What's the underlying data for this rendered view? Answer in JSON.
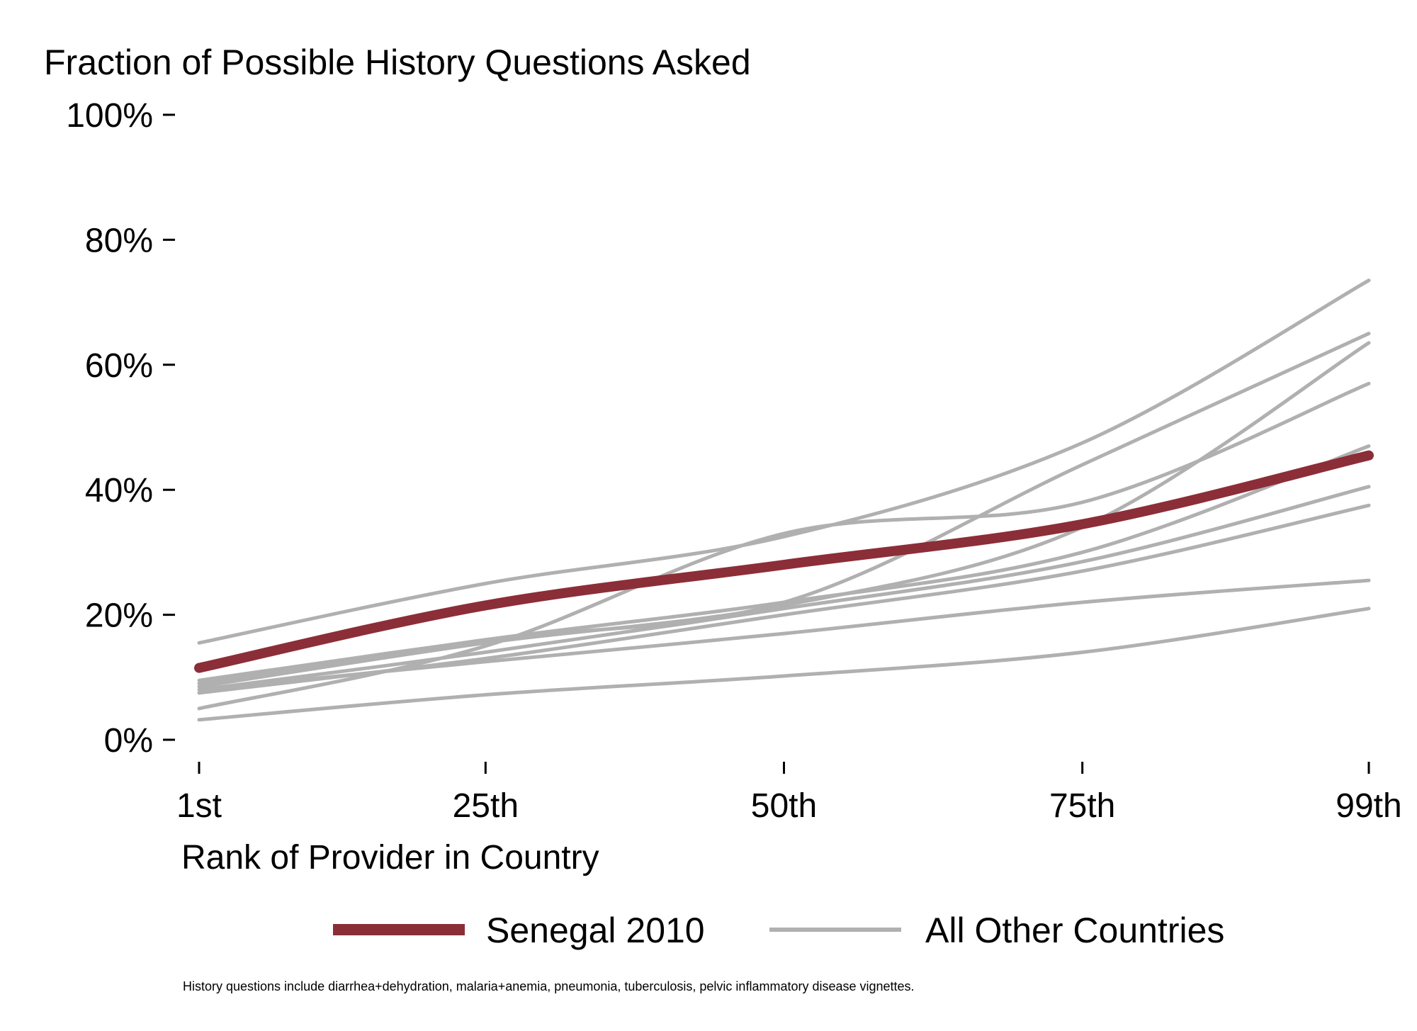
{
  "chart_data": {
    "type": "line",
    "title": "Fraction of Possible History Questions Asked",
    "xlabel": "Rank of Provider in Country",
    "ylabel": "",
    "x_ticks": [
      1,
      25,
      50,
      75,
      99
    ],
    "x_tick_labels": [
      "1st",
      "25th",
      "50th",
      "75th",
      "99th"
    ],
    "y_ticks": [
      0,
      20,
      40,
      60,
      80,
      100
    ],
    "y_tick_labels": [
      "0%",
      "20%",
      "40%",
      "60%",
      "80%",
      "100%"
    ],
    "xlim": [
      1,
      99
    ],
    "ylim": [
      0,
      100
    ],
    "grid": false,
    "legend_position": "bottom",
    "x": [
      1,
      25,
      50,
      75,
      99
    ],
    "series": [
      {
        "name": "Senegal 2010",
        "color": "#8b2e38",
        "highlight": true,
        "values": [
          11.5,
          21.5,
          28,
          34.5,
          45.5
        ]
      },
      {
        "name": "All Other Countries",
        "color": "#b0b0b0",
        "highlight": false,
        "values": [
          15.5,
          25,
          32.5,
          47.5,
          73.5
        ]
      },
      {
        "name": "All Other Countries",
        "color": "#b0b0b0",
        "highlight": false,
        "values": [
          9.5,
          16,
          22,
          44,
          65
        ]
      },
      {
        "name": "All Other Countries",
        "color": "#b0b0b0",
        "highlight": false,
        "values": [
          5,
          15,
          33,
          38,
          57
        ]
      },
      {
        "name": "All Other Countries",
        "color": "#b0b0b0",
        "highlight": false,
        "values": [
          8.5,
          15.5,
          21.5,
          34,
          63.5
        ]
      },
      {
        "name": "All Other Countries",
        "color": "#b0b0b0",
        "highlight": false,
        "values": [
          9,
          16,
          22,
          30,
          47
        ]
      },
      {
        "name": "All Other Countries",
        "color": "#b0b0b0",
        "highlight": false,
        "values": [
          8,
          14,
          21,
          28.5,
          40.5
        ]
      },
      {
        "name": "All Other Countries",
        "color": "#b0b0b0",
        "highlight": false,
        "values": [
          7.5,
          13,
          20,
          27,
          37.5
        ]
      },
      {
        "name": "All Other Countries",
        "color": "#b0b0b0",
        "highlight": false,
        "values": [
          8,
          12.5,
          17,
          22,
          25.5
        ]
      },
      {
        "name": "All Other Countries",
        "color": "#b0b0b0",
        "highlight": false,
        "values": [
          3.2,
          7.2,
          10.2,
          14,
          21
        ]
      }
    ],
    "legend": [
      {
        "label": "Senegal 2010",
        "color": "#8b2e38"
      },
      {
        "label": "All Other Countries",
        "color": "#b0b0b0"
      }
    ],
    "note": "History questions include diarrhea+dehydration, malaria+anemia, pneumonia, tuberculosis, pelvic inflammatory disease vignettes."
  }
}
